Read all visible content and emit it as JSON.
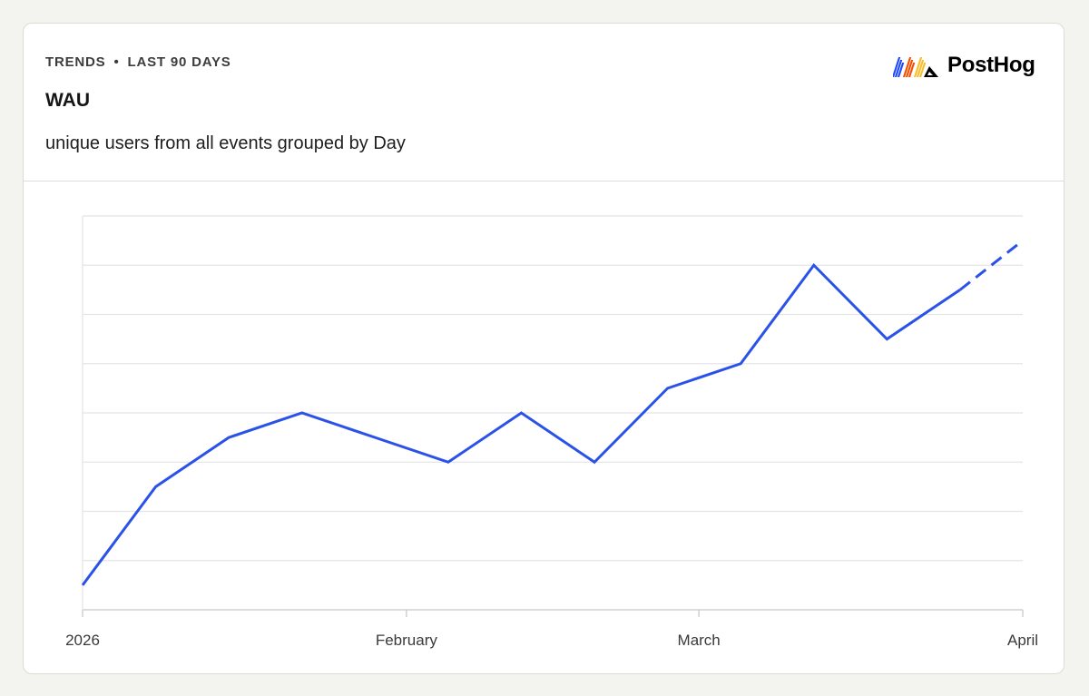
{
  "header": {
    "eyebrow_part1": "TRENDS",
    "eyebrow_separator": "•",
    "eyebrow_part2": "LAST 90 DAYS",
    "title": "WAU",
    "subtitle": "unique users from all events grouped by Day"
  },
  "logo": {
    "text": "PostHog",
    "icon": "posthog-hedgehog-logo",
    "colors": [
      "#1d4aff",
      "#f54e00",
      "#f9bd2b",
      "#000000"
    ]
  },
  "colors": {
    "line": "#2a52e8",
    "grid": "#e4e4e8",
    "axis": "#d0d0d4",
    "background": "#f3f3ef",
    "card": "#ffffff"
  },
  "chart_data": {
    "type": "line",
    "title": "WAU",
    "subtitle": "unique users from all events grouped by Day",
    "xlabel": "",
    "ylabel": "",
    "x_tick_labels": [
      "2026",
      "February",
      "March",
      "April"
    ],
    "x_tick_dates": [
      "2026-01-01",
      "2026-02-01",
      "2026-03-01",
      "2026-04-01"
    ],
    "y_tick_labels": [],
    "y_values_unit": "relative gridline steps (no y-axis values shown)",
    "ylim": [
      0,
      8
    ],
    "grid": true,
    "legend": "none",
    "series": [
      {
        "x": [
          "2026-01-01",
          "2026-01-08",
          "2026-01-15",
          "2026-01-22",
          "2026-01-29",
          "2026-02-05",
          "2026-02-12",
          "2026-02-19",
          "2026-02-26",
          "2026-03-05",
          "2026-03-12",
          "2026-03-19",
          "2026-03-26",
          "2026-04-01"
        ],
        "y": [
          0.5,
          2.5,
          3.5,
          4.0,
          3.5,
          3.0,
          4.0,
          3.0,
          4.5,
          5.0,
          7.0,
          5.5,
          6.5,
          7.5
        ],
        "incomplete_from_index": 12
      }
    ]
  }
}
